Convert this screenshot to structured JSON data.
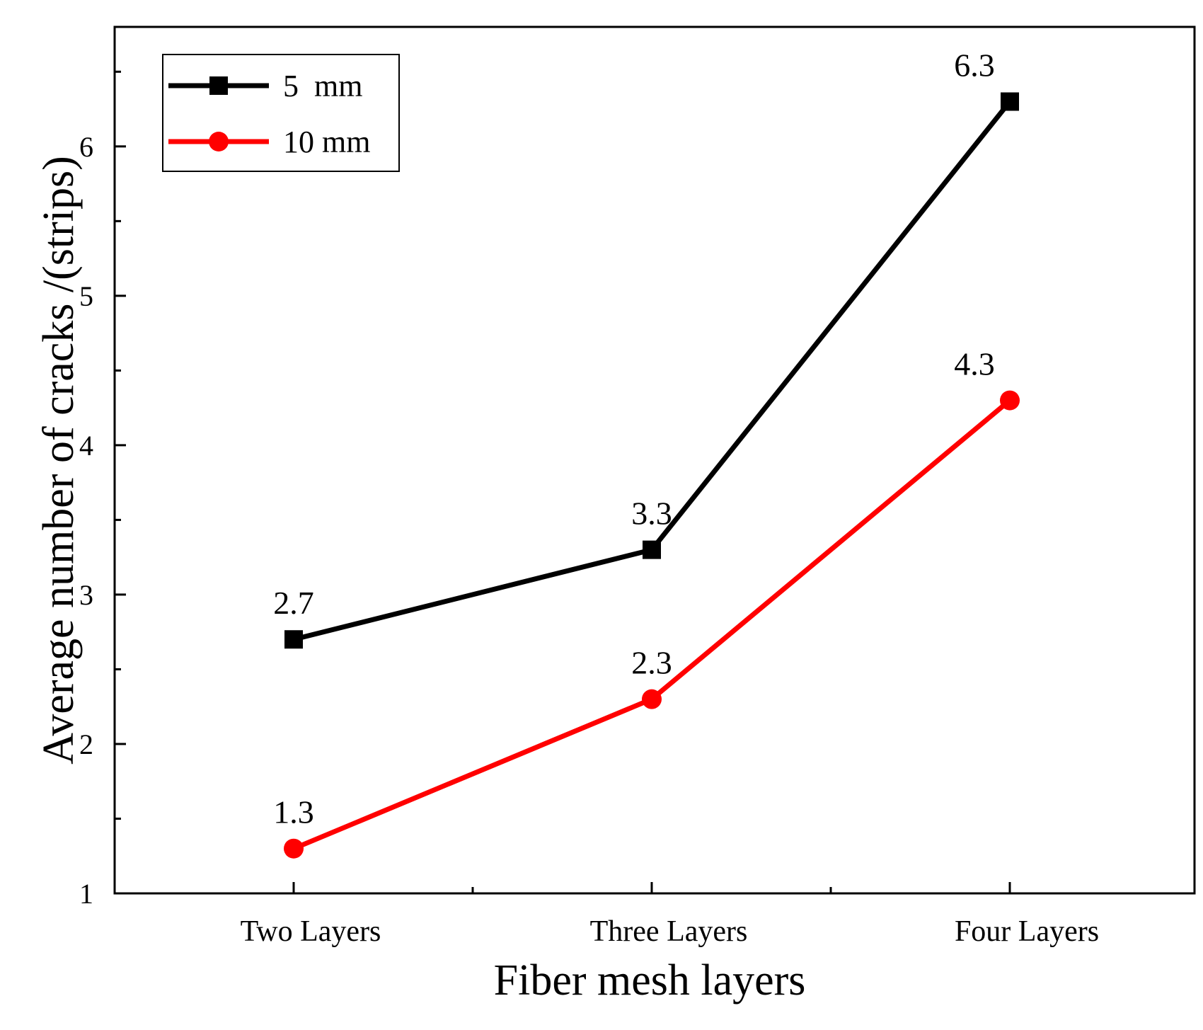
{
  "chart_data": {
    "type": "line",
    "title": "",
    "xlabel": "Fiber mesh layers",
    "ylabel": "Average number of cracks /(strips)",
    "categories": [
      "Two Layers",
      "Three Layers",
      "Four Layers"
    ],
    "ylim": [
      1,
      6.8
    ],
    "yticks": [
      1,
      2,
      3,
      4,
      5,
      6
    ],
    "grid": false,
    "legend_position": "top-left",
    "series": [
      {
        "name": "5  mm",
        "values": [
          2.7,
          3.3,
          6.3
        ],
        "labels": [
          "2.7",
          "3.3",
          "6.3"
        ],
        "color": "#000000",
        "marker": "square"
      },
      {
        "name": "10 mm",
        "values": [
          1.3,
          2.3,
          4.3
        ],
        "labels": [
          "1.3",
          "2.3",
          "4.3"
        ],
        "color": "#ff0000",
        "marker": "circle"
      }
    ]
  }
}
